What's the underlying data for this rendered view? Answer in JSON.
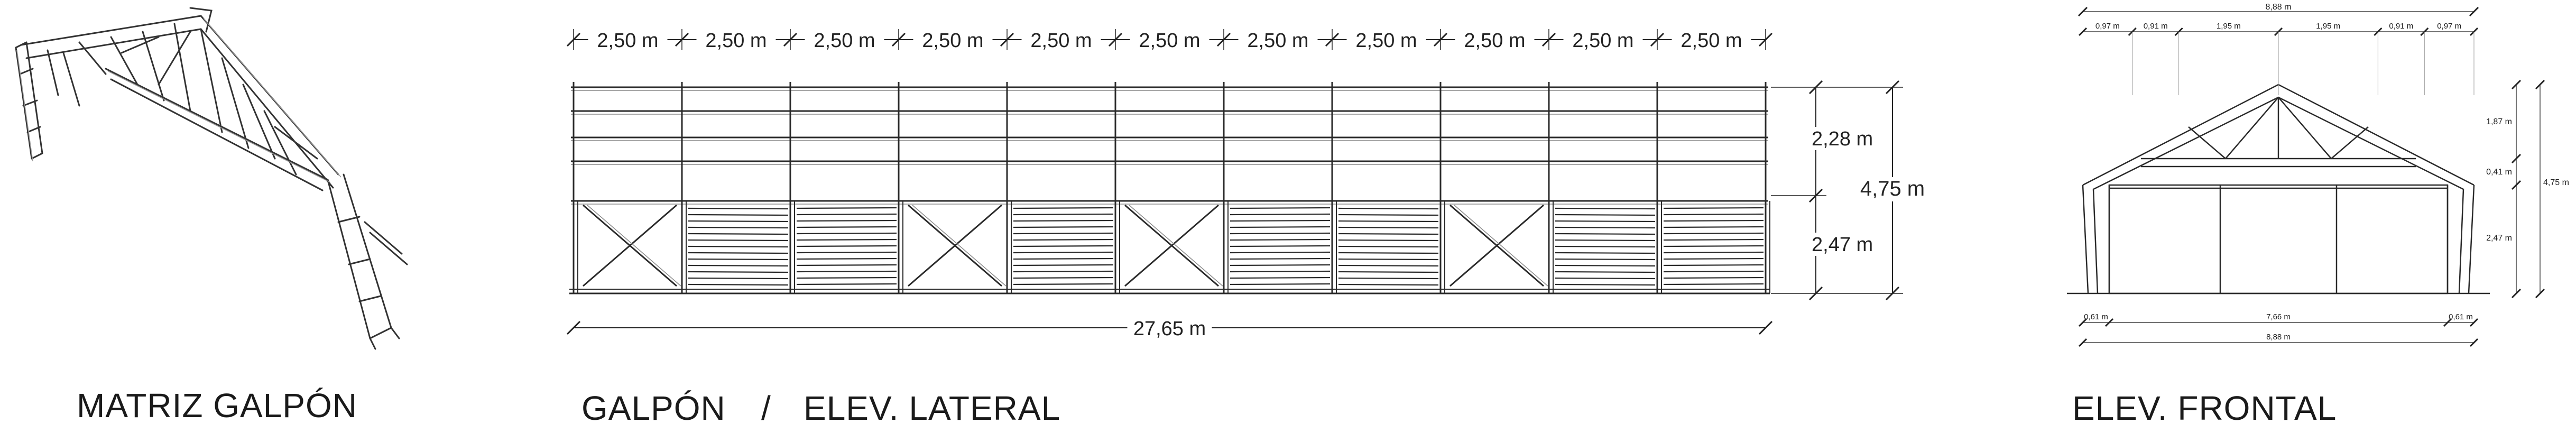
{
  "captions": {
    "matrix": "MATRIZ GALPÓN",
    "lateral_left": "GALPÓN",
    "lateral_sep": "/",
    "lateral_right": "ELEV. LATERAL",
    "frontal": "ELEV. FRONTAL"
  },
  "lateral": {
    "bay_labels": [
      "2,50 m",
      "2,50 m",
      "2,50 m",
      "2,50 m",
      "2,50 m",
      "2,50 m",
      "2,50 m",
      "2,50 m",
      "2,50 m",
      "2,50 m",
      "2,50 m"
    ],
    "total_length": "27,65 m",
    "upper_height": "2,28 m",
    "lower_height": "2,47 m",
    "total_height": "4,75 m",
    "bay_types": [
      "x",
      "slat",
      "slat",
      "x",
      "slat",
      "x",
      "slat",
      "slat",
      "x",
      "slat",
      "slat"
    ]
  },
  "frontal": {
    "top_total": "8,88 m",
    "top_segments": [
      "0,97 m",
      "0,91 m",
      "1,95 m",
      "1,95 m",
      "0,91 m",
      "0,97 m"
    ],
    "right_upper": "1,87 m",
    "right_middle": "0,41 m",
    "right_lower": "2,47 m",
    "right_total": "4,75 m",
    "bottom_left": "0,61 m",
    "bottom_center": "7,66 m",
    "bottom_right": "0,61 m",
    "bottom_total": "8,88 m"
  },
  "colors": {
    "line": "#2a2a2a",
    "light": "#8a8a8a",
    "text": "#1a1a1a"
  }
}
